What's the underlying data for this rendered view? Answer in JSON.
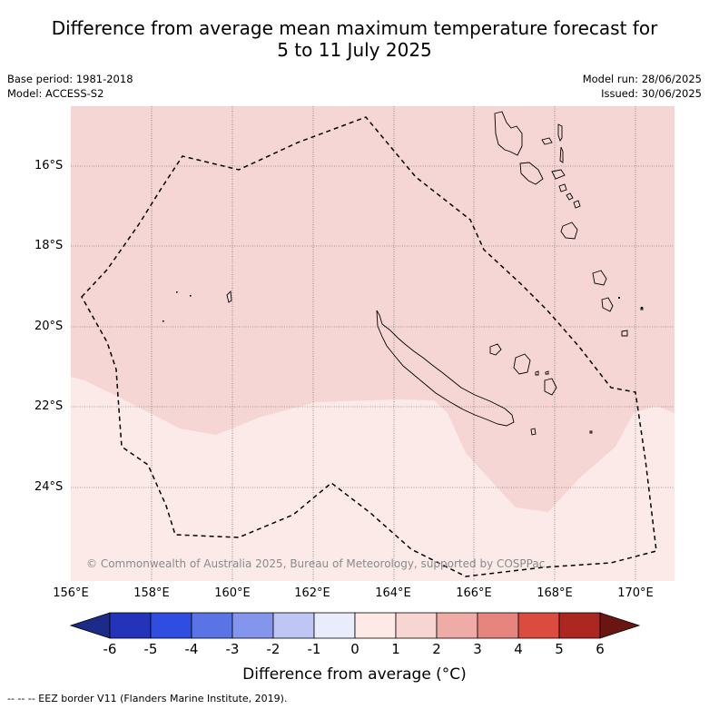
{
  "title": {
    "line1": "Difference from average mean maximum temperature forecast for",
    "line2": "5 to 11 July 2025"
  },
  "meta": {
    "base_period": "Base period: 1981-2018",
    "model": "Model: ACCESS-S2",
    "model_run": "Model run: 28/06/2025",
    "issued": "Issued: 30/06/2025"
  },
  "map": {
    "lat_labels": [
      "16°S",
      "18°S",
      "20°S",
      "22°S",
      "24°S"
    ],
    "lon_labels": [
      "156°E",
      "158°E",
      "160°E",
      "162°E",
      "164°E",
      "166°E",
      "168°E",
      "170°E"
    ],
    "copyright": "© Commonwealth of Australia 2025, Bureau of Meteorology, supported by COSPPac",
    "colors": {
      "anomaly_1_2": "#f5d6d4",
      "anomaly_0_1": "#fbeae8",
      "grid": "#555555",
      "eez": "#000000"
    }
  },
  "colorbar": {
    "ticks": [
      "-6",
      "-5",
      "-4",
      "-3",
      "-2",
      "-1",
      "0",
      "1",
      "2",
      "3",
      "4",
      "5",
      "6"
    ],
    "colors": [
      "#1c2a88",
      "#2334b8",
      "#2f4de0",
      "#5a74e6",
      "#8496ec",
      "#bfc6f4",
      "#e8ecfb",
      "#fdeae7",
      "#f7d5d2",
      "#efaca7",
      "#e6857e",
      "#da4b40",
      "#ad2722",
      "#6b1512"
    ],
    "label": "Difference from average (°C)"
  },
  "footnote": "--  --  -- EEZ border V11 (Flanders Marine Institute, 2019)."
}
